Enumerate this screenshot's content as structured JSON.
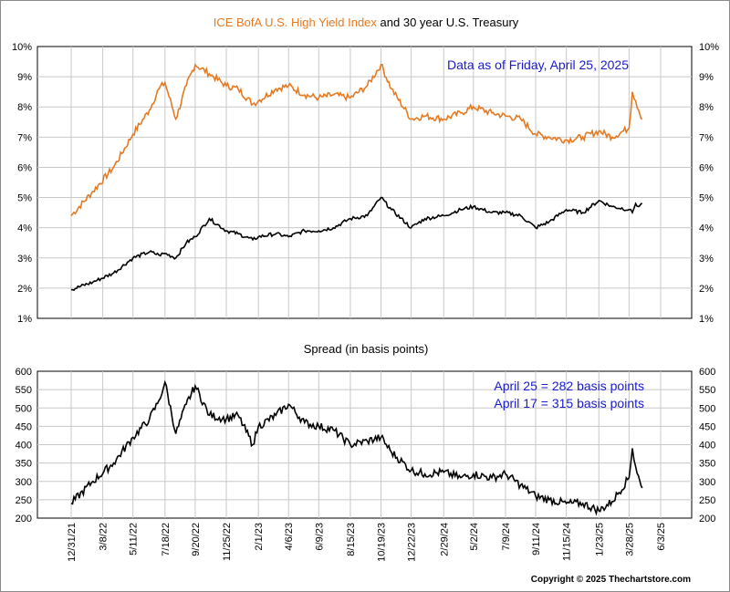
{
  "title": {
    "part1": "ICE BofA U.S. High Yield Index",
    "part2": " and 30 year U.S. Treasury",
    "part1_color": "#e57a22",
    "part2_color": "#000000"
  },
  "copyright": "Copyright © 2025 Thechartstore.com",
  "chart_data": [
    {
      "type": "line",
      "title": "ICE BofA U.S. High Yield Index and 30 year U.S. Treasury",
      "annotation": "Data as of Friday, April 25, 2025",
      "ylim": [
        1,
        10
      ],
      "yticks": [
        "1%",
        "2%",
        "3%",
        "4%",
        "5%",
        "6%",
        "7%",
        "8%",
        "9%",
        "10%"
      ],
      "grid": true,
      "x_dates": [
        "2021-12-31",
        "2022-02-15",
        "2022-03-31",
        "2022-05-11",
        "2022-06-15",
        "2022-07-05",
        "2022-07-18",
        "2022-08-10",
        "2022-09-01",
        "2022-09-20",
        "2022-10-20",
        "2022-11-25",
        "2022-12-20",
        "2023-01-20",
        "2023-02-01",
        "2023-03-10",
        "2023-04-06",
        "2023-05-10",
        "2023-06-09",
        "2023-07-10",
        "2023-08-15",
        "2023-09-20",
        "2023-10-19",
        "2023-11-10",
        "2023-12-22",
        "2024-01-20",
        "2024-02-29",
        "2024-04-05",
        "2024-05-02",
        "2024-06-10",
        "2024-07-09",
        "2024-08-10",
        "2024-09-11",
        "2024-10-10",
        "2024-11-15",
        "2024-12-20",
        "2025-01-23",
        "2025-02-20",
        "2025-03-28",
        "2025-04-04",
        "2025-04-11",
        "2025-04-17",
        "2025-04-25"
      ],
      "series": [
        {
          "name": "ICE BofA U.S. High Yield Index",
          "color": "#e57a22",
          "values": [
            4.4,
            5.2,
            6.0,
            7.1,
            7.9,
            8.6,
            8.8,
            7.6,
            8.7,
            9.4,
            9.1,
            8.7,
            8.6,
            8.1,
            8.2,
            8.6,
            8.7,
            8.4,
            8.3,
            8.4,
            8.3,
            8.7,
            9.4,
            8.6,
            7.6,
            7.7,
            7.6,
            7.8,
            8.0,
            7.8,
            7.7,
            7.6,
            7.1,
            7.0,
            6.9,
            7.0,
            7.2,
            7.0,
            7.3,
            8.5,
            8.2,
            7.9,
            7.6
          ]
        },
        {
          "name": "30 year U.S. Treasury",
          "color": "#000000",
          "values": [
            1.95,
            2.2,
            2.5,
            3.0,
            3.2,
            3.1,
            3.15,
            3.0,
            3.5,
            3.7,
            4.3,
            3.9,
            3.8,
            3.6,
            3.7,
            3.8,
            3.7,
            3.9,
            3.9,
            4.0,
            4.3,
            4.4,
            5.0,
            4.6,
            4.0,
            4.3,
            4.4,
            4.6,
            4.7,
            4.5,
            4.5,
            4.4,
            4.0,
            4.2,
            4.6,
            4.5,
            4.9,
            4.7,
            4.6,
            4.5,
            4.8,
            4.7,
            4.8
          ]
        }
      ]
    },
    {
      "type": "line",
      "title": "Spread (in basis points)",
      "annotations": [
        "April 25 = 282 basis points",
        "April 17 = 315 basis points"
      ],
      "ylim": [
        200,
        600
      ],
      "yticks": [
        "200",
        "250",
        "300",
        "350",
        "400",
        "450",
        "500",
        "550",
        "600"
      ],
      "grid": true,
      "x_dates": [
        "2021-12-31",
        "2022-02-15",
        "2022-03-31",
        "2022-05-11",
        "2022-06-15",
        "2022-07-05",
        "2022-07-18",
        "2022-08-10",
        "2022-09-01",
        "2022-09-20",
        "2022-10-20",
        "2022-11-25",
        "2022-12-20",
        "2023-01-20",
        "2023-02-01",
        "2023-03-10",
        "2023-04-06",
        "2023-05-10",
        "2023-06-09",
        "2023-07-10",
        "2023-08-15",
        "2023-09-20",
        "2023-10-19",
        "2023-11-10",
        "2023-12-22",
        "2024-01-20",
        "2024-02-29",
        "2024-04-05",
        "2024-05-02",
        "2024-06-10",
        "2024-07-09",
        "2024-08-10",
        "2024-09-11",
        "2024-10-10",
        "2024-11-15",
        "2024-12-20",
        "2025-01-23",
        "2025-02-20",
        "2025-03-28",
        "2025-04-04",
        "2025-04-11",
        "2025-04-17",
        "2025-04-25"
      ],
      "series": [
        {
          "name": "Spread",
          "color": "#000000",
          "values": [
            240,
            300,
            350,
            420,
            470,
            520,
            570,
            430,
            510,
            560,
            480,
            470,
            480,
            400,
            450,
            480,
            510,
            460,
            450,
            440,
            400,
            410,
            420,
            380,
            330,
            320,
            325,
            310,
            320,
            310,
            320,
            290,
            260,
            250,
            240,
            240,
            220,
            245,
            310,
            390,
            340,
            315,
            282
          ]
        }
      ]
    }
  ],
  "x_axis": {
    "tick_labels": [
      "12/31/21",
      "3/8/22",
      "5/11/22",
      "7/18/22",
      "9/20/22",
      "11/25/22",
      "2/1/23",
      "4/6/23",
      "6/9/23",
      "8/15/23",
      "10/19/23",
      "12/22/23",
      "2/29/24",
      "5/2/24",
      "7/9/24",
      "9/11/24",
      "11/15/24",
      "1/23/25",
      "3/28/25",
      "6/3/25"
    ]
  }
}
